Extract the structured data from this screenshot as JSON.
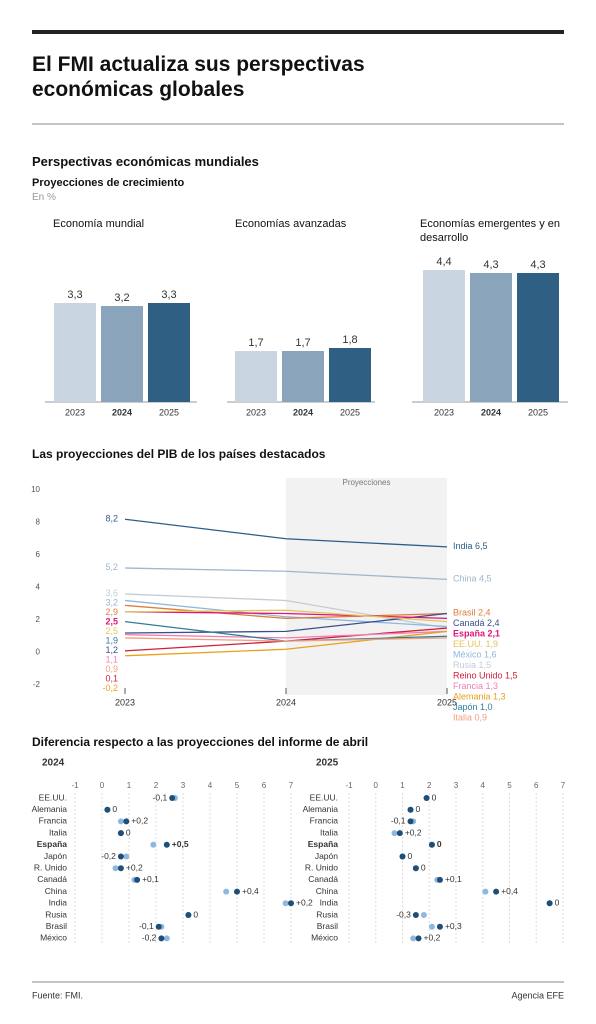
{
  "title": "El FMI actualiza  sus perspectivas económicas globales",
  "section_title": "Perspectivas económicas mundiales",
  "subtitle": "Proyecciones de crecimiento",
  "unit": "En %",
  "comparison_title": "Diferencia respecto a las proyecciones del informe de abril",
  "footer": {
    "source": "Fuente: FMI.",
    "credit": "Agencia EFE"
  },
  "chart_data": [
    {
      "type": "bar",
      "title": "Economía mundial",
      "categories": [
        "2023",
        "2024",
        "2025"
      ],
      "values": [
        3.3,
        3.2,
        3.3
      ],
      "value_labels": [
        "3,3",
        "3,2",
        "3,3"
      ],
      "colors": [
        "#c9d6e1",
        "#8aa5bb",
        "#2f5f82"
      ],
      "ylim": [
        0,
        5.5
      ]
    },
    {
      "type": "bar",
      "title": "Economías avanzadas",
      "categories": [
        "2023",
        "2024",
        "2025"
      ],
      "values": [
        1.7,
        1.7,
        1.8
      ],
      "value_labels": [
        "1,7",
        "1,7",
        "1,8"
      ],
      "colors": [
        "#c9d6e1",
        "#8aa5bb",
        "#2f5f82"
      ],
      "ylim": [
        0,
        5.5
      ]
    },
    {
      "type": "bar",
      "title": "Economías emergentes y en desarrollo",
      "categories": [
        "2023",
        "2024",
        "2025"
      ],
      "values": [
        4.4,
        4.3,
        4.3
      ],
      "value_labels": [
        "4,4",
        "4,3",
        "4,3"
      ],
      "colors": [
        "#c9d6e1",
        "#8aa5bb",
        "#2f5f82"
      ],
      "ylim": [
        0,
        5.5
      ]
    },
    {
      "type": "line",
      "title": "Las proyecciones del PIB de los países destacados",
      "projection_label": "Proyecciones",
      "projection_start": 2024,
      "x": [
        2023,
        2024,
        2025
      ],
      "xlim": [
        2023,
        2025
      ],
      "xticks": [
        2023,
        2024,
        2025
      ],
      "ylim": [
        -2,
        10
      ],
      "yticks": [
        -2,
        0,
        2,
        4,
        6,
        8,
        10
      ],
      "series": [
        {
          "name": "India",
          "color": "#2b5c8a",
          "values": [
            8.2,
            7.0,
            6.5
          ],
          "value_labels": [
            "8,2",
            null,
            "6,5"
          ]
        },
        {
          "name": "China",
          "color": "#9fb6cc",
          "values": [
            5.2,
            5.0,
            4.5
          ],
          "value_labels": [
            "5,2",
            null,
            "4,5"
          ]
        },
        {
          "name": "Rusia",
          "color": "#c3ccd6",
          "values": [
            3.6,
            3.2,
            1.5
          ],
          "value_labels": [
            "3,6",
            null,
            "1,5"
          ]
        },
        {
          "name": "México",
          "color": "#8fb7de",
          "values": [
            3.2,
            2.2,
            1.6
          ],
          "value_labels": [
            "3,2",
            null,
            "1,6"
          ]
        },
        {
          "name": "Brasil",
          "color": "#e07b39",
          "values": [
            2.9,
            2.1,
            2.4
          ],
          "value_labels": [
            "2,9",
            null,
            "2,4"
          ]
        },
        {
          "name": "Canadá",
          "color": "#3a4f8a",
          "values": [
            1.2,
            1.3,
            2.4
          ],
          "value_labels": [
            "1,2",
            null,
            "2,4"
          ]
        },
        {
          "name": "España",
          "color": "#e0157a",
          "values": [
            2.5,
            2.4,
            2.1
          ],
          "value_labels": [
            "2,5",
            null,
            "2,1"
          ]
        },
        {
          "name": "EE.UU.",
          "color": "#e3c45e",
          "values": [
            2.5,
            2.6,
            1.9
          ],
          "value_labels": [
            "2,5",
            null,
            "1,9"
          ]
        },
        {
          "name": "Reino Unido",
          "color": "#d01c3c",
          "values": [
            0.1,
            0.7,
            1.5
          ],
          "value_labels": [
            "0,1",
            null,
            "1,5"
          ]
        },
        {
          "name": "Francia",
          "color": "#f07fb0",
          "values": [
            1.1,
            0.9,
            1.3
          ],
          "value_labels": [
            "1,1",
            null,
            "1,3"
          ]
        },
        {
          "name": "Alemania",
          "color": "#e8a11c",
          "values": [
            -0.2,
            0.2,
            1.3
          ],
          "value_labels": [
            "-0,2",
            null,
            "1,3"
          ]
        },
        {
          "name": "Japón",
          "color": "#2e7d9a",
          "values": [
            1.9,
            0.7,
            1.0
          ],
          "value_labels": [
            "1,9",
            null,
            "1,0"
          ]
        },
        {
          "name": "Italia",
          "color": "#f0a080",
          "values": [
            0.9,
            0.7,
            0.9
          ],
          "value_labels": [
            "0,9",
            null,
            "0,9"
          ]
        }
      ]
    },
    {
      "type": "dot",
      "title": "2024",
      "categories": [
        "EE.UU.",
        "Alemania",
        "Francia",
        "Italia",
        "España",
        "Japón",
        "R. Unido",
        "Canadá",
        "China",
        "India",
        "Rusia",
        "Brasil",
        "México"
      ],
      "values": [
        2.6,
        0.2,
        0.9,
        0.7,
        2.4,
        0.7,
        0.7,
        1.3,
        5.0,
        7.0,
        3.2,
        2.1,
        2.2
      ],
      "previous": [
        2.7,
        0.2,
        0.7,
        0.7,
        1.9,
        0.9,
        0.5,
        1.2,
        4.6,
        6.8,
        3.2,
        2.2,
        2.4
      ],
      "diff": [
        -0.1,
        0,
        0.2,
        0,
        0.5,
        -0.2,
        0.2,
        0.1,
        0.4,
        0.2,
        0,
        -0.1,
        -0.2
      ],
      "diff_labels": [
        "-0,1",
        "0",
        "+0,2",
        "0",
        "+0,5",
        "-0,2",
        "+0,2",
        "+0,1",
        "+0,4",
        "+0,2",
        "0",
        "-0,1",
        "-0,2"
      ],
      "color": "#1f4e79",
      "previous_color": "#8fb8de",
      "xlim": [
        -1,
        7
      ],
      "xticks": [
        -1,
        0,
        1,
        2,
        3,
        4,
        5,
        6,
        7
      ]
    },
    {
      "type": "dot",
      "title": "2025",
      "categories": [
        "EE.UU.",
        "Alemania",
        "Francia",
        "Italia",
        "España",
        "Japón",
        "R. Unido",
        "Canadá",
        "China",
        "India",
        "Rusia",
        "Brasil",
        "México"
      ],
      "values": [
        1.9,
        1.3,
        1.3,
        0.9,
        2.1,
        1.0,
        1.5,
        2.4,
        4.5,
        6.5,
        1.5,
        2.4,
        1.6
      ],
      "previous": [
        1.9,
        1.3,
        1.4,
        0.7,
        2.1,
        1.0,
        1.5,
        2.3,
        4.1,
        6.5,
        1.8,
        2.1,
        1.4
      ],
      "diff": [
        0,
        0,
        -0.1,
        0.2,
        0,
        0,
        0,
        0.1,
        0.4,
        0,
        -0.3,
        0.3,
        0.2
      ],
      "diff_labels": [
        "0",
        "0",
        "-0,1",
        "+0,2",
        "0",
        "0",
        "0",
        "+0,1",
        "+0,4",
        "0",
        "-0,3",
        "+0,3",
        "+0,2"
      ],
      "color": "#1f4e79",
      "previous_color": "#8fb8de",
      "xlim": [
        -1,
        7
      ],
      "xticks": [
        -1,
        0,
        1,
        2,
        3,
        4,
        5,
        6,
        7
      ]
    }
  ]
}
